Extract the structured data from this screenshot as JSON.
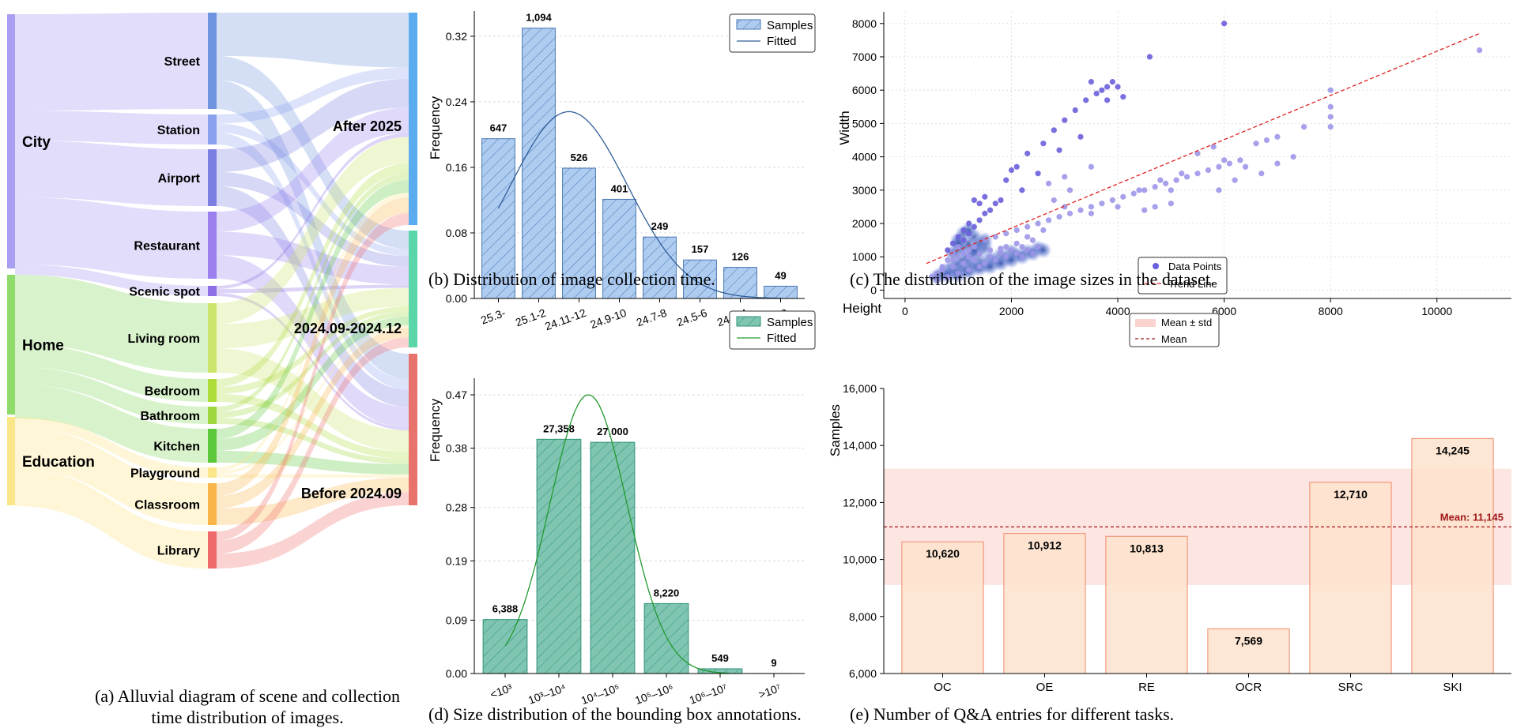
{
  "captions": {
    "a": "(a) Alluvial diagram of scene and collection time distribution of images.",
    "b": "(b) Distribution of image collection time.",
    "c": "(c) The distribution of the image sizes in the dataset.",
    "d": "(d) Size distribution of the bounding box annotations.",
    "e": "(e) Number of Q&A entries for different tasks."
  },
  "chart_data": [
    {
      "type": "alluvial",
      "stages": [
        {
          "name": "category",
          "nodes": [
            {
              "label": "City",
              "color": "#a89ef2"
            },
            {
              "label": "Home",
              "color": "#8fdc6a"
            },
            {
              "label": "Education",
              "color": "#fbe68a"
            }
          ]
        },
        {
          "name": "scene",
          "nodes": [
            {
              "label": "Street",
              "color": "#6f95e0",
              "parent": "City"
            },
            {
              "label": "Station",
              "color": "#8aa2ee",
              "parent": "City"
            },
            {
              "label": "Airport",
              "color": "#7c7fe2",
              "parent": "City"
            },
            {
              "label": "Restaurant",
              "color": "#9b80ee",
              "parent": "City"
            },
            {
              "label": "Scenic spot",
              "color": "#8e6fe6",
              "parent": "City"
            },
            {
              "label": "Living room",
              "color": "#cbe66a",
              "parent": "Home"
            },
            {
              "label": "Bedroom",
              "color": "#b0dc3a",
              "parent": "Home"
            },
            {
              "label": "Bathroom",
              "color": "#9ed83c",
              "parent": "Home"
            },
            {
              "label": "Kitchen",
              "color": "#5ec83c",
              "parent": "Home"
            },
            {
              "label": "Playground",
              "color": "#fbe68a",
              "parent": "Education"
            },
            {
              "label": "Classroom",
              "color": "#f9b44a",
              "parent": "Education"
            },
            {
              "label": "Library",
              "color": "#ee6a6a",
              "parent": "Education"
            }
          ]
        },
        {
          "name": "time",
          "nodes": [
            {
              "label": "After 2025",
              "color": "#5aacef"
            },
            {
              "label": "2024.09-2024.12",
              "color": "#5ad6a8"
            },
            {
              "label": "Before 2024.09",
              "color": "#e8736c"
            }
          ]
        }
      ]
    },
    {
      "type": "bar",
      "ylabel": "Frequency",
      "categories": [
        "25.3-",
        "25.1-2",
        "24.11-12",
        "24.9-10",
        "24.7-8",
        "24.5-6",
        "24.3-4",
        "24.1-2"
      ],
      "counts": [
        "647",
        "1,094",
        "526",
        "401",
        "249",
        "157",
        "126",
        "49"
      ],
      "values": [
        0.195,
        0.33,
        0.159,
        0.121,
        0.075,
        0.047,
        0.038,
        0.015
      ],
      "yticks": [
        "0.00",
        "0.08",
        "0.16",
        "0.24",
        "0.32"
      ],
      "ylim": [
        0,
        0.345
      ],
      "legend": {
        "position": "top-right",
        "entries": [
          "Samples",
          "Fitted"
        ]
      },
      "fill": "#aecbf0",
      "edge": "#4a78b4",
      "line_color": "#2f5f98"
    },
    {
      "type": "scatter",
      "xlabel": "Height",
      "ylabel": "Width",
      "xticks": [
        "0",
        "2000",
        "4000",
        "6000",
        "8000",
        "10000"
      ],
      "yticks": [
        "0",
        "1000",
        "2000",
        "3000",
        "4000",
        "5000",
        "6000",
        "7000",
        "8000"
      ],
      "xlim": [
        -400,
        11400
      ],
      "ylim": [
        -250,
        8350
      ],
      "grid": true,
      "legend": {
        "position": "bottom-right",
        "entries": [
          "Data Points",
          "Trend Line"
        ]
      },
      "trend_line": {
        "x": [
          400,
          10800
        ],
        "y": [
          800,
          7700
        ],
        "color": "#e02020"
      },
      "point_color": "#6a5fdc",
      "points": [
        [
          600,
          500
        ],
        [
          700,
          700
        ],
        [
          800,
          900
        ],
        [
          900,
          1100
        ],
        [
          1000,
          1300
        ],
        [
          1100,
          1500
        ],
        [
          1200,
          1700
        ],
        [
          1300,
          1900
        ],
        [
          1400,
          2100
        ],
        [
          1500,
          2300
        ],
        [
          900,
          900
        ],
        [
          1000,
          1000
        ],
        [
          1100,
          1100
        ],
        [
          1200,
          1200
        ],
        [
          1300,
          1300
        ],
        [
          1000,
          1600
        ],
        [
          1100,
          1800
        ],
        [
          1200,
          2000
        ],
        [
          800,
          1200
        ],
        [
          900,
          1400
        ],
        [
          1600,
          2400
        ],
        [
          1700,
          2600
        ],
        [
          1800,
          2700
        ],
        [
          1500,
          2800
        ],
        [
          1400,
          2600
        ],
        [
          1300,
          2700
        ],
        [
          1900,
          3300
        ],
        [
          2000,
          3600
        ],
        [
          2100,
          3700
        ],
        [
          2300,
          4100
        ],
        [
          2600,
          4400
        ],
        [
          2800,
          4800
        ],
        [
          3000,
          5100
        ],
        [
          3200,
          5400
        ],
        [
          3400,
          5700
        ],
        [
          3600,
          5900
        ],
        [
          3700,
          6000
        ],
        [
          3800,
          6100
        ],
        [
          3900,
          6250
        ],
        [
          4000,
          6100
        ],
        [
          3500,
          6250
        ],
        [
          4600,
          7000
        ],
        [
          3800,
          5700
        ],
        [
          4100,
          5800
        ],
        [
          2200,
          3000
        ],
        [
          2500,
          3500
        ],
        [
          2900,
          4200
        ],
        [
          3300,
          4600
        ],
        [
          3000,
          3400
        ],
        [
          3500,
          3700
        ],
        [
          2700,
          3200
        ],
        [
          3100,
          3000
        ],
        [
          6000,
          8000
        ],
        [
          10800,
          7200
        ],
        [
          8000,
          6000
        ],
        [
          8000,
          5500
        ],
        [
          8000,
          5200
        ],
        [
          8000,
          4900
        ],
        [
          7500,
          4900
        ],
        [
          7000,
          4600
        ],
        [
          6800,
          4500
        ],
        [
          6600,
          4400
        ],
        [
          5800,
          4300
        ],
        [
          5500,
          4100
        ],
        [
          4400,
          3000
        ],
        [
          4000,
          2500
        ],
        [
          3500,
          2300
        ],
        [
          3000,
          2500
        ],
        [
          2800,
          2700
        ],
        [
          4800,
          3300
        ],
        [
          6000,
          3900
        ],
        [
          5000,
          3000
        ],
        [
          5900,
          3000
        ],
        [
          5000,
          2600
        ],
        [
          6200,
          3300
        ],
        [
          6700,
          3500
        ],
        [
          7000,
          3800
        ],
        [
          7300,
          4000
        ],
        [
          6400,
          3700
        ],
        [
          4700,
          2500
        ],
        [
          5200,
          3500
        ],
        [
          4500,
          2400
        ],
        [
          1500,
          1500
        ],
        [
          1700,
          1600
        ],
        [
          1900,
          1700
        ],
        [
          2100,
          1800
        ],
        [
          2300,
          1900
        ],
        [
          2500,
          2000
        ],
        [
          2700,
          2100
        ],
        [
          2900,
          2200
        ],
        [
          3100,
          2300
        ],
        [
          3300,
          2400
        ],
        [
          3500,
          2500
        ],
        [
          3700,
          2600
        ],
        [
          3900,
          2700
        ],
        [
          4100,
          2800
        ],
        [
          4300,
          2900
        ],
        [
          4500,
          3000
        ],
        [
          4700,
          3100
        ],
        [
          4900,
          3200
        ],
        [
          5100,
          3300
        ],
        [
          5300,
          3400
        ],
        [
          5500,
          3500
        ],
        [
          5700,
          3600
        ],
        [
          5900,
          3700
        ],
        [
          6100,
          3800
        ],
        [
          6300,
          3900
        ],
        [
          1500,
          800
        ],
        [
          1700,
          900
        ],
        [
          1900,
          1000
        ],
        [
          2100,
          1100
        ],
        [
          2300,
          1200
        ],
        [
          2500,
          1300
        ],
        [
          1400,
          700
        ],
        [
          1200,
          600
        ],
        [
          1000,
          500
        ],
        [
          800,
          400
        ],
        [
          600,
          300
        ],
        [
          1600,
          1000
        ],
        [
          1800,
          1100
        ],
        [
          2000,
          1200
        ],
        [
          2200,
          1300
        ],
        [
          2400,
          1500
        ],
        [
          2600,
          1800
        ],
        [
          2200,
          1000
        ],
        [
          2400,
          1100
        ],
        [
          1300,
          900
        ],
        [
          1100,
          800
        ],
        [
          900,
          700
        ],
        [
          700,
          600
        ],
        [
          500,
          400
        ],
        [
          1900,
          1300
        ],
        [
          2100,
          1400
        ],
        [
          2300,
          1600
        ],
        [
          1200,
          1000
        ],
        [
          1400,
          1100
        ],
        [
          1600,
          1200
        ],
        [
          1800,
          1250
        ]
      ],
      "density_points": [
        [
          800,
          600
        ],
        [
          900,
          700
        ],
        [
          1000,
          800
        ],
        [
          1100,
          900
        ],
        [
          1200,
          1000
        ],
        [
          1300,
          1100
        ],
        [
          1400,
          1200
        ],
        [
          1500,
          1300
        ],
        [
          1000,
          650
        ],
        [
          1200,
          750
        ],
        [
          1400,
          850
        ],
        [
          1600,
          950
        ],
        [
          1800,
          1050
        ],
        [
          2000,
          1150
        ],
        [
          700,
          500
        ],
        [
          900,
          550
        ],
        [
          1100,
          600
        ],
        [
          1300,
          700
        ],
        [
          1500,
          750
        ],
        [
          1700,
          850
        ],
        [
          1900,
          950
        ],
        [
          2100,
          1050
        ],
        [
          2300,
          1150
        ],
        [
          2500,
          1250
        ],
        [
          1000,
          1200
        ],
        [
          1100,
          1300
        ],
        [
          1200,
          1400
        ],
        [
          900,
          1100
        ],
        [
          1000,
          1500
        ],
        [
          1100,
          1700
        ],
        [
          1300,
          1600
        ],
        [
          1200,
          1800
        ],
        [
          1000,
          1400
        ],
        [
          1300,
          1200
        ],
        [
          1400,
          1400
        ],
        [
          1500,
          1500
        ],
        [
          600,
          400
        ],
        [
          800,
          450
        ],
        [
          1000,
          450
        ],
        [
          1200,
          550
        ],
        [
          1400,
          650
        ],
        [
          1600,
          700
        ],
        [
          1800,
          800
        ],
        [
          2000,
          900
        ],
        [
          2200,
          1000
        ],
        [
          2400,
          1100
        ],
        [
          2600,
          1200
        ]
      ]
    },
    {
      "type": "bar",
      "ylabel": "Frequency",
      "categories": [
        "<10³",
        "10³–10⁴",
        "10⁴–10⁵",
        "10⁵–10⁶",
        "10⁶–10⁷",
        ">10⁷"
      ],
      "counts": [
        "6,388",
        "27,358",
        "27,000",
        "8,220",
        "549",
        "9"
      ],
      "values": [
        0.091,
        0.395,
        0.39,
        0.118,
        0.008,
        0.0001
      ],
      "yticks": [
        "0.00",
        "0.09",
        "0.19",
        "0.28",
        "0.38",
        "0.47"
      ],
      "ylim": [
        0,
        0.49
      ],
      "legend": {
        "position": "top-right",
        "entries": [
          "Samples",
          "Fitted"
        ]
      },
      "fill": "#7fc5b2",
      "edge": "#2e9478",
      "line_color": "#239a2f"
    },
    {
      "type": "bar",
      "ylabel": "Samples",
      "categories": [
        "OC",
        "OE",
        "RE",
        "OCR",
        "SRC",
        "SKI"
      ],
      "values": [
        10620,
        10912,
        10813,
        7569,
        12710,
        14245
      ],
      "labels": [
        "10,620",
        "10,912",
        "10,813",
        "7,569",
        "12,710",
        "14,245"
      ],
      "yticks": [
        "6,000",
        "8,000",
        "10,000",
        "12,000",
        "14,000",
        "16,000"
      ],
      "ylim": [
        6000,
        16000
      ],
      "mean": 11145,
      "std": 2040,
      "mean_label": "Mean: 11,145",
      "legend": {
        "position": "top-right",
        "entries": [
          "Mean ± std",
          "Mean"
        ]
      },
      "fill": "#fde3cc",
      "edge": "#f08b6c",
      "mean_color": "#a01818",
      "band_color": "#fbd3cf"
    }
  ]
}
